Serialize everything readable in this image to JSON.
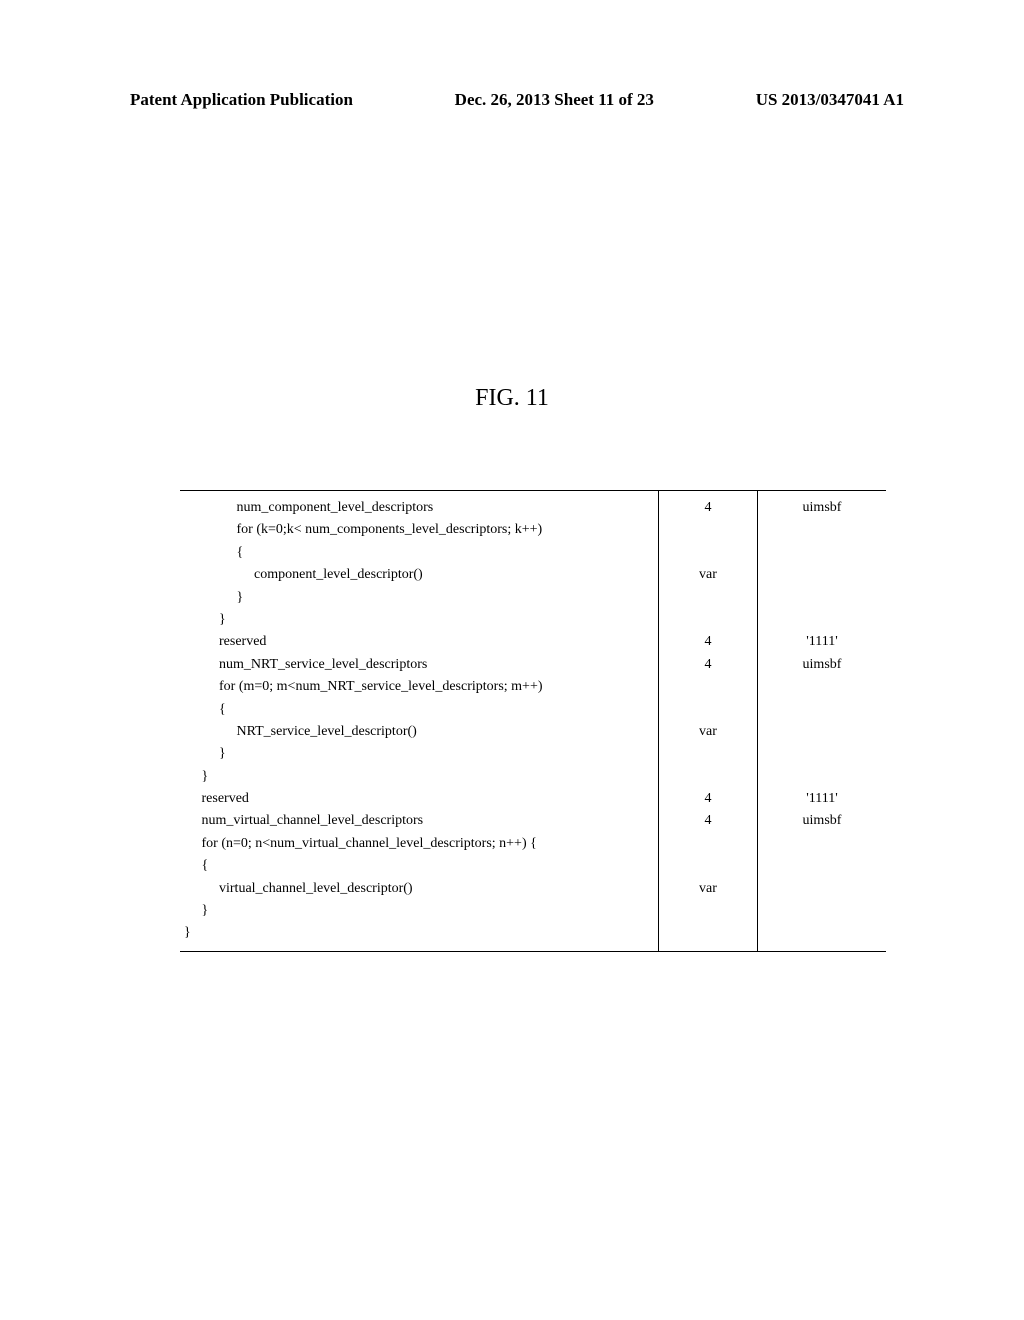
{
  "header": {
    "left": "Patent Application Publication",
    "center": "Dec. 26, 2013  Sheet 11 of 23",
    "right": "US 2013/0347041 A1"
  },
  "figure": {
    "title": "FIG. 11"
  },
  "table": {
    "syntax": "               num_component_level_descriptors\n               for (k=0;k< num_components_level_descriptors; k++)\n               {\n                    component_level_descriptor()\n               }\n          }\n          reserved\n          num_NRT_service_level_descriptors\n          for (m=0; m<num_NRT_service_level_descriptors; m++)\n          {\n               NRT_service_level_descriptor()\n          }\n     }\n     reserved\n     num_virtual_channel_level_descriptors\n     for (n=0; n<num_virtual_channel_level_descriptors; n++) {\n     {\n          virtual_channel_level_descriptor()\n     }\n}",
    "bits": "4\n\n\nvar\n\n\n4\n4\n\n\nvar\n\n\n4\n4\n\n\nvar\n\n",
    "mnemonic": "uimsbf\n\n\n\n\n\n'1111'\nuimsbf\n\n\n\n\n\n'1111'\nuimsbf\n\n\n\n\n"
  },
  "style": {
    "page_bg": "#ffffff",
    "text_color": "#000000",
    "header_fontsize": 17,
    "figure_fontsize": 24,
    "table_fontsize": 14,
    "border_color": "#000000"
  }
}
